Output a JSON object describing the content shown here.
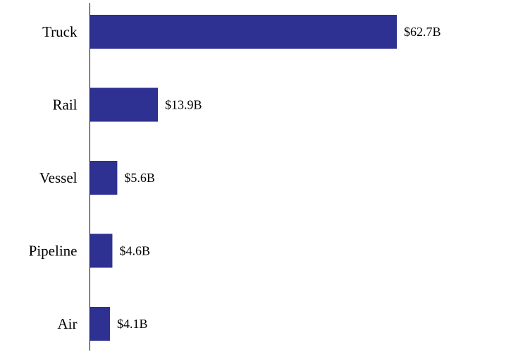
{
  "chart_data": {
    "type": "bar",
    "orientation": "horizontal",
    "title": "",
    "xlabel": "",
    "ylabel": "",
    "categories": [
      "Truck",
      "Rail",
      "Vessel",
      "Pipeline",
      "Air"
    ],
    "values": [
      62.7,
      13.9,
      5.6,
      4.6,
      4.1
    ],
    "value_labels": [
      "$62.7B",
      "$13.9B",
      "$5.6B",
      "$4.6B",
      "$4.1B"
    ],
    "xlim": [
      0,
      62.7
    ],
    "grid": false,
    "legend": "none",
    "bar_color": "#2e3192",
    "axis_color": "#000000",
    "text_color": "#000000"
  }
}
